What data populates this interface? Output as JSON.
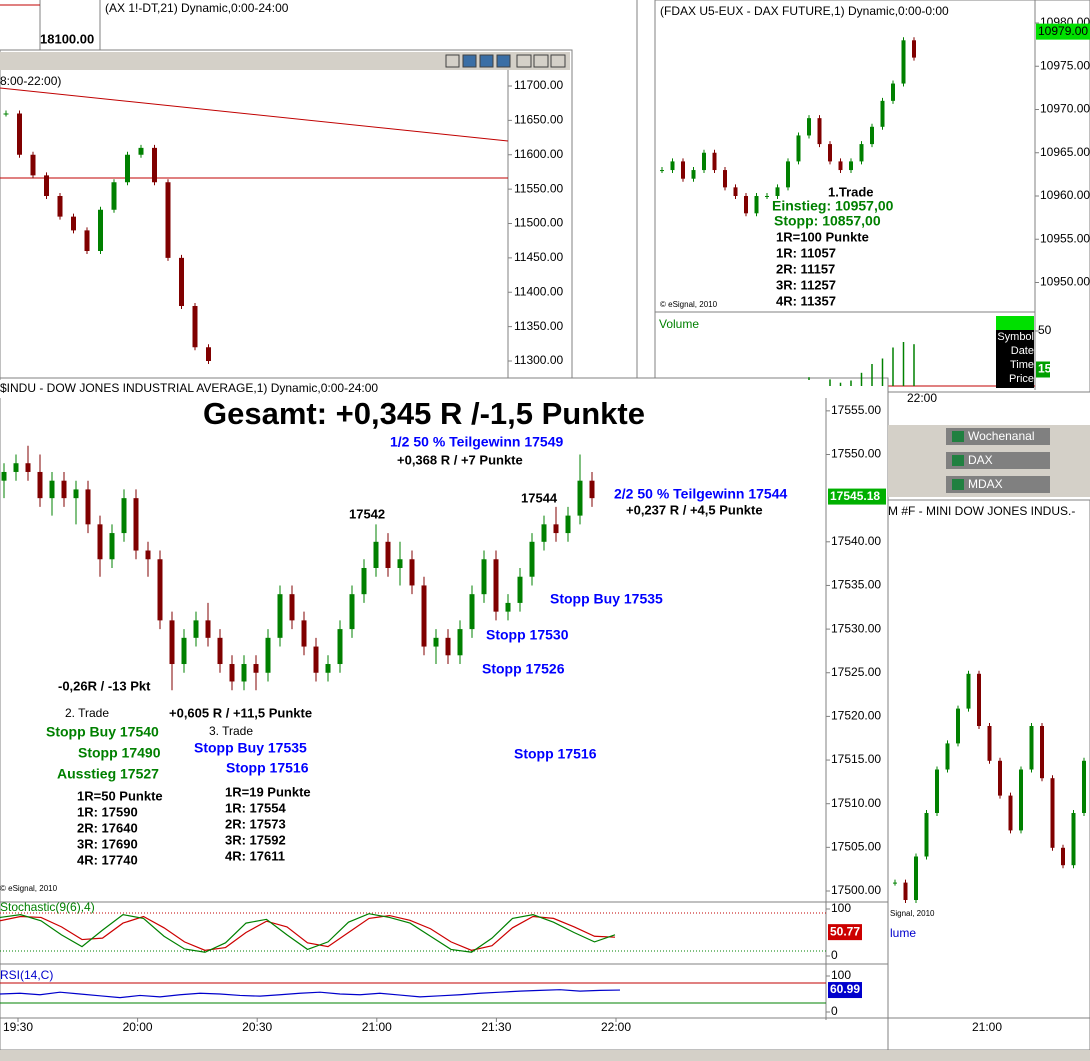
{
  "top_window": {
    "title": "(AX 1!-DT,21) Dynamic,0:00-24:00",
    "last_price": "18100.00"
  },
  "upper_left_chart": {
    "title": "8:00-22:00)",
    "ylim": [
      11270,
      11720
    ],
    "yticks": [
      {
        "value": 11700,
        "label": "11700.00"
      },
      {
        "value": 11650,
        "label": "11650.00"
      },
      {
        "value": 11600,
        "label": "11600.00"
      },
      {
        "value": 11550,
        "label": "11550.00"
      },
      {
        "value": 11500,
        "label": "11500.00"
      },
      {
        "value": 11450,
        "label": "11450.00"
      },
      {
        "value": 11400,
        "label": "11400.00"
      },
      {
        "value": 11350,
        "label": "11350.00"
      },
      {
        "value": 11300,
        "label": "11300.00"
      }
    ],
    "closes": [
      11660,
      11600,
      11570,
      11540,
      11510,
      11490,
      11460,
      11520,
      11560,
      11600,
      11610,
      11560,
      11450,
      11380,
      11320,
      11300
    ]
  },
  "fdax_chart": {
    "title": "(FDAX U5-EUX - DAX FUTURE,1) Dynamic,0:00-0:00",
    "yticks": [
      {
        "value": 10980,
        "label": "10980.00"
      },
      {
        "value": 10975,
        "label": "10975.00"
      },
      {
        "value": 10970,
        "label": "10970.00"
      },
      {
        "value": 10965,
        "label": "10965.00"
      },
      {
        "value": 10960,
        "label": "10960.00"
      },
      {
        "value": 10955,
        "label": "10955.00"
      },
      {
        "value": 10950,
        "label": "10950.00"
      }
    ],
    "last_price": {
      "value": 10979,
      "label": "10979.00"
    },
    "closes": [
      10963,
      10964,
      10962,
      10963,
      10965,
      10963,
      10961,
      10960,
      10958,
      10960,
      10960,
      10961,
      10964,
      10967,
      10969,
      10966,
      10964,
      10963,
      10964,
      10966,
      10968,
      10971,
      10973,
      10978,
      10976
    ],
    "annotations": [
      "1.Trade",
      "Einstieg: 10957,00",
      "Stopp: 10857,00",
      "1R=100 Punkte",
      "1R: 11057",
      "2R: 11157",
      "3R: 11257",
      "4R: 11357"
    ],
    "copyright": "© eSignal, 2010",
    "volume_label": "Volume",
    "volume_ytick": 50,
    "volume_last": 15,
    "volume": [
      2,
      1,
      3,
      1,
      2,
      1,
      4,
      2,
      1,
      1,
      3,
      2,
      5,
      3,
      8,
      4,
      6,
      3,
      5,
      12,
      20,
      25,
      35,
      40,
      38
    ],
    "data_window": [
      "Symbol",
      "Date",
      "Time",
      "Price"
    ],
    "xtick": "22:00"
  },
  "main_chart": {
    "title": "$INDU - DOW JONES INDUSTRIAL AVERAGE,1) Dynamic,0:00-24:00",
    "headline": "Gesamt: +0,345 R /-1,5 Punkte",
    "yticks": [
      {
        "value": 17555,
        "label": "17555.00"
      },
      {
        "value": 17550,
        "label": "17550.00"
      },
      {
        "value": 17540,
        "label": "17540.00"
      },
      {
        "value": 17535,
        "label": "17535.00"
      },
      {
        "value": 17530,
        "label": "17530.00"
      },
      {
        "value": 17525,
        "label": "17525.00"
      },
      {
        "value": 17520,
        "label": "17520.00"
      },
      {
        "value": 17515,
        "label": "17515.00"
      },
      {
        "value": 17510,
        "label": "17510.00"
      },
      {
        "value": 17505,
        "label": "17505.00"
      },
      {
        "value": 17500,
        "label": "17500.00"
      }
    ],
    "last_price": {
      "value": 17545.18,
      "label": "17545.18"
    },
    "xticks": [
      "19:30",
      "20:00",
      "20:30",
      "21:00",
      "21:30",
      "22:00"
    ],
    "candles": [
      [
        17547,
        17549,
        17545,
        17548
      ],
      [
        17548,
        17550,
        17547,
        17549
      ],
      [
        17549,
        17551,
        17547,
        17548
      ],
      [
        17548,
        17550,
        17544,
        17545
      ],
      [
        17545,
        17548,
        17543,
        17547
      ],
      [
        17547,
        17548,
        17544,
        17545
      ],
      [
        17545,
        17547,
        17542,
        17546
      ],
      [
        17546,
        17547,
        17541,
        17542
      ],
      [
        17542,
        17543,
        17536,
        17538
      ],
      [
        17538,
        17542,
        17537,
        17541
      ],
      [
        17541,
        17546,
        17540,
        17545
      ],
      [
        17545,
        17546,
        17538,
        17539
      ],
      [
        17539,
        17540,
        17536,
        17538
      ],
      [
        17538,
        17539,
        17530,
        17531
      ],
      [
        17531,
        17532,
        17523,
        17526
      ],
      [
        17526,
        17530,
        17525,
        17529
      ],
      [
        17529,
        17532,
        17528,
        17531
      ],
      [
        17531,
        17533,
        17528,
        17529
      ],
      [
        17529,
        17530,
        17525,
        17526
      ],
      [
        17526,
        17527,
        17523,
        17524
      ],
      [
        17524,
        17527,
        17523,
        17526
      ],
      [
        17526,
        17527,
        17523,
        17525
      ],
      [
        17525,
        17530,
        17524,
        17529
      ],
      [
        17529,
        17535,
        17528,
        17534
      ],
      [
        17534,
        17535,
        17530,
        17531
      ],
      [
        17531,
        17532,
        17527,
        17528
      ],
      [
        17528,
        17529,
        17524,
        17525
      ],
      [
        17525,
        17527,
        17524,
        17526
      ],
      [
        17526,
        17531,
        17525,
        17530
      ],
      [
        17530,
        17535,
        17529,
        17534
      ],
      [
        17534,
        17538,
        17533,
        17537
      ],
      [
        17537,
        17542,
        17536,
        17540
      ],
      [
        17540,
        17541,
        17536,
        17537
      ],
      [
        17537,
        17540,
        17535,
        17538
      ],
      [
        17538,
        17539,
        17534,
        17535
      ],
      [
        17535,
        17536,
        17527,
        17528
      ],
      [
        17528,
        17530,
        17526,
        17529
      ],
      [
        17529,
        17530,
        17526,
        17527
      ],
      [
        17527,
        17531,
        17526,
        17530
      ],
      [
        17530,
        17535,
        17529,
        17534
      ],
      [
        17534,
        17539,
        17533,
        17538
      ],
      [
        17538,
        17539,
        17531,
        17532
      ],
      [
        17532,
        17534,
        17531,
        17533
      ],
      [
        17533,
        17537,
        17532,
        17536
      ],
      [
        17536,
        17541,
        17535,
        17540
      ],
      [
        17540,
        17543,
        17539,
        17542
      ],
      [
        17542,
        17544,
        17540,
        17541
      ],
      [
        17541,
        17544,
        17540,
        17543
      ],
      [
        17543,
        17550,
        17542,
        17547
      ],
      [
        17547,
        17548,
        17544,
        17545
      ]
    ],
    "annotations": [
      "1/2 50 % Teilgewinn 17549",
      "+0,368 R / +7 Punkte",
      "17542",
      "17544",
      "2/2 50 % Teilgewinn 17544",
      "+0,237 R / +4,5 Punkte",
      "Stopp Buy 17535",
      "Stopp 17530",
      "Stopp 17526",
      "Stopp 17516",
      "-0,26R / -13 Pkt",
      "+0,605 R / +11,5 Punkte",
      "2. Trade",
      "Stopp Buy 17540",
      "Stopp 17490",
      "Ausstieg 17527",
      "1R=50 Punkte",
      "1R: 17590",
      "2R: 17640",
      "3R: 17690",
      "4R: 17740",
      "3. Trade",
      "Stopp Buy 17535",
      "Stopp 17516",
      "1R=19 Punkte",
      "1R: 17554",
      "2R: 17573",
      "3R: 17592",
      "4R: 17611"
    ],
    "copyright": "© eSignal, 2010",
    "stochastic": {
      "title": "Stochastic(9(6),4)",
      "yticks": [
        100,
        0
      ],
      "last": 50.77,
      "k": [
        82,
        88,
        75,
        45,
        20,
        55,
        88,
        80,
        42,
        15,
        8,
        28,
        70,
        78,
        45,
        14,
        30,
        72,
        90,
        82,
        70,
        42,
        14,
        8,
        38,
        80,
        88,
        72,
        50,
        30,
        45
      ],
      "d": [
        75,
        84,
        82,
        62,
        35,
        38,
        70,
        84,
        60,
        30,
        12,
        18,
        50,
        74,
        62,
        28,
        20,
        50,
        80,
        86,
        76,
        58,
        30,
        12,
        22,
        60,
        84,
        80,
        62,
        42,
        40
      ]
    },
    "rsi": {
      "title": "RSI(14,C)",
      "yticks": [
        100,
        0
      ],
      "last": 60.99,
      "values": [
        50,
        52,
        48,
        55,
        50,
        45,
        40,
        46,
        42,
        48,
        52,
        50,
        46,
        44,
        48,
        52,
        55,
        50,
        48,
        52,
        47,
        42,
        45,
        48,
        52,
        55,
        58,
        60,
        62,
        58,
        60,
        61
      ]
    }
  },
  "side_windows": [
    "Wochenanal",
    "DAX",
    "MDAX"
  ],
  "mini_dow_chart": {
    "title": "M #F - MINI DOW JONES INDUS.-",
    "copyright": "Signal, 2010",
    "volume_label": "lume",
    "xtick": "21:00",
    "closes": [
      17502,
      17500,
      17505,
      17510,
      17515,
      17518,
      17522,
      17526,
      17520,
      17516,
      17512,
      17508,
      17515,
      17520,
      17514,
      17506,
      17504,
      17510,
      17516
    ]
  }
}
